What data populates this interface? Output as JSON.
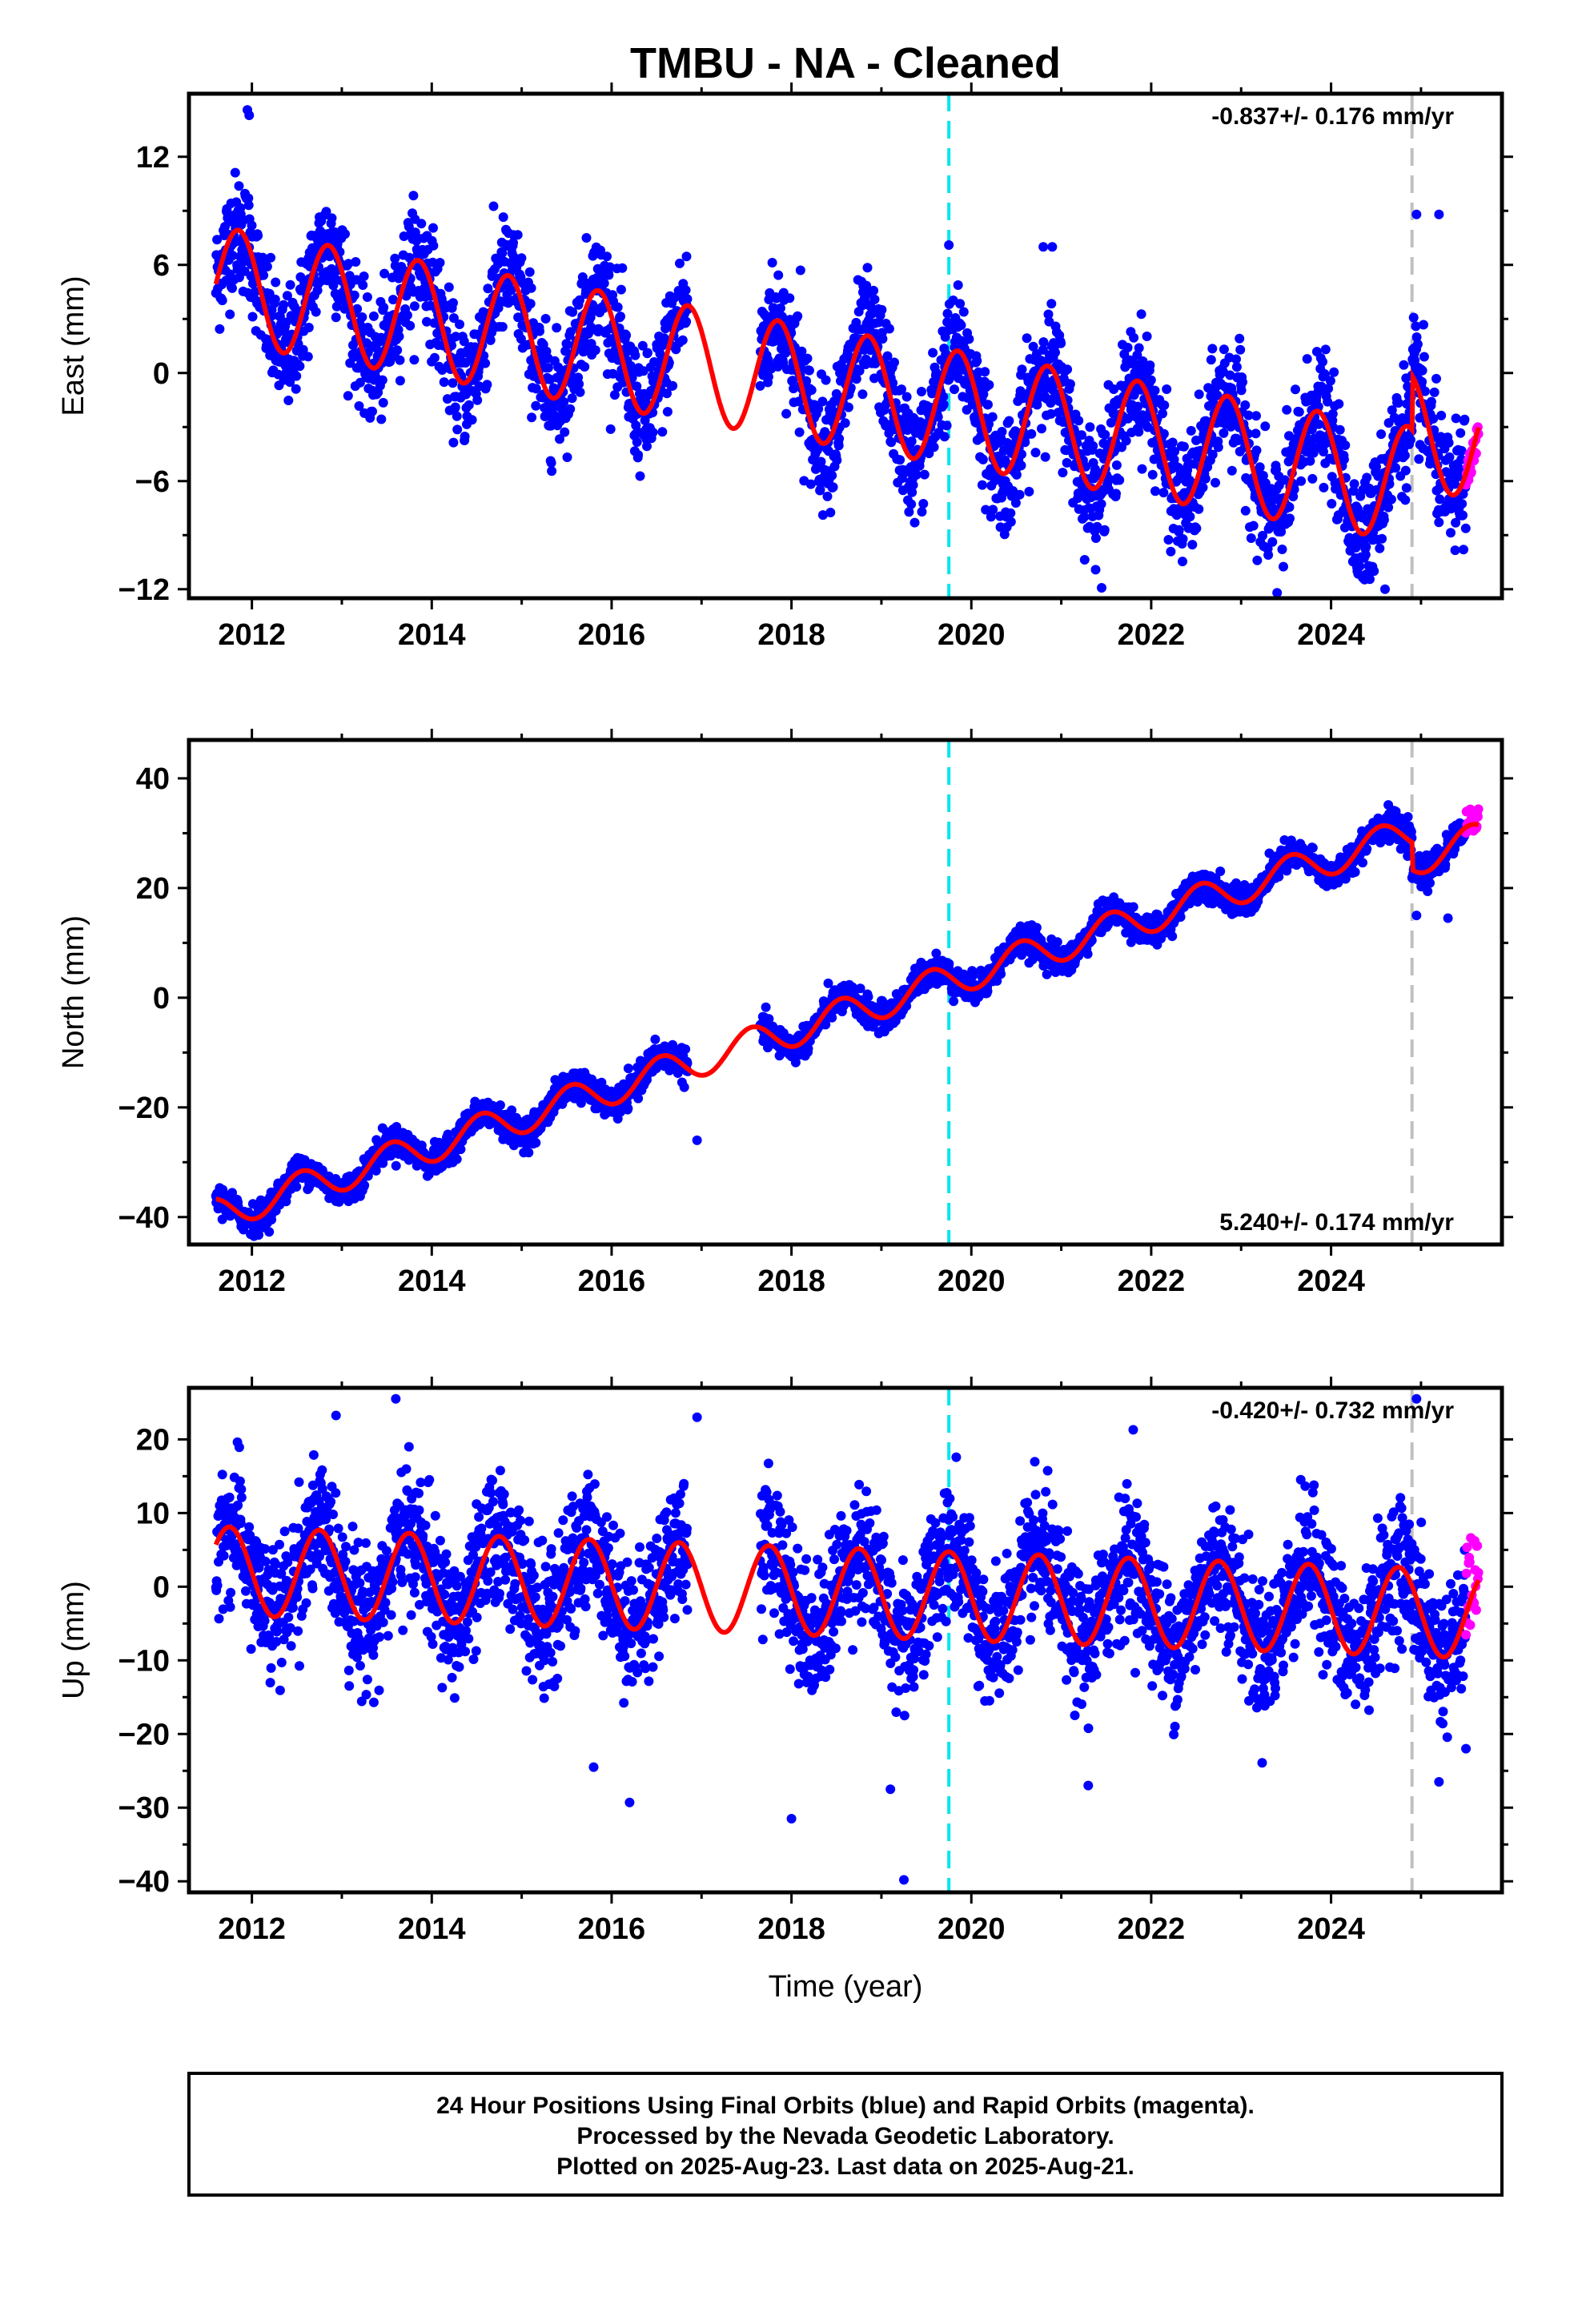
{
  "title": "TMBU  - NA - Cleaned",
  "colors": {
    "final_orbits": "#0000ff",
    "rapid_orbits": "#ff00ff",
    "model": "#ff0000",
    "marker_cyan": "#00e5ee",
    "marker_gray": "#c0c0c0"
  },
  "chart_data": [
    {
      "type": "scatter",
      "component": "east",
      "title": "",
      "xlabel": "",
      "ylabel": "East (mm)",
      "xlim": [
        2011.3,
        2025.9
      ],
      "ylim": [
        -12.5,
        15.5
      ],
      "xticks": [
        "2012",
        "2014",
        "2016",
        "2018",
        "2020",
        "2022",
        "2024"
      ],
      "yticks": [
        "12",
        "6",
        "0",
        "-6",
        "-12"
      ],
      "rate_text": "-0.837+/- 0.176 mm/yr",
      "rate_position": "top-right",
      "vertical_lines": [
        {
          "x": 2019.75,
          "color": "cyan",
          "style": "dashed"
        },
        {
          "x": 2024.9,
          "color": "gray",
          "style": "dashed"
        }
      ],
      "data_span": [
        2011.6,
        2025.64
      ],
      "data_gap": [
        2016.85,
        2017.65
      ],
      "rapid_span": [
        2025.5,
        2025.64
      ],
      "model": {
        "intercept_2012": 4.6,
        "rate": -0.837,
        "annual_amplitude": 3.2,
        "peak_phase_year": 0.85
      },
      "scatter_sigma": 1.6,
      "offsets": [
        {
          "x": 2024.9,
          "dy": 3.0
        }
      ],
      "outliers": [
        [
          2011.95,
          14.6
        ],
        [
          2011.97,
          14.3
        ],
        [
          2024.95,
          8.8
        ],
        [
          2025.2,
          8.8
        ],
        [
          2020.8,
          7.0
        ],
        [
          2020.9,
          7.0
        ],
        [
          2019.75,
          7.1
        ],
        [
          2018.1,
          5.7
        ],
        [
          2023.4,
          -12.2
        ],
        [
          2024.6,
          -12.0
        ]
      ]
    },
    {
      "type": "scatter",
      "component": "north",
      "title": "",
      "xlabel": "",
      "ylabel": "North (mm)",
      "xlim": [
        2011.3,
        2025.9
      ],
      "ylim": [
        -45,
        47
      ],
      "xticks": [
        "2012",
        "2014",
        "2016",
        "2018",
        "2020",
        "2022",
        "2024"
      ],
      "yticks": [
        "40",
        "20",
        "0",
        "-20",
        "-40"
      ],
      "rate_text": "5.240+/- 0.174 mm/yr",
      "rate_position": "bottom-right",
      "vertical_lines": [
        {
          "x": 2019.75,
          "color": "cyan",
          "style": "dashed"
        },
        {
          "x": 2024.9,
          "color": "gray",
          "style": "dashed"
        }
      ],
      "data_span": [
        2011.6,
        2025.64
      ],
      "data_gap": [
        2016.85,
        2017.65
      ],
      "rapid_span": [
        2025.5,
        2025.64
      ],
      "model": {
        "intercept_2012": -37.5,
        "rate": 5.24,
        "annual_amplitude": 3.0,
        "peak_phase_year": 0.55
      },
      "scatter_sigma": 1.3,
      "offsets": [
        {
          "x": 2024.9,
          "dy": -5.0
        }
      ],
      "outliers": [
        [
          2016.95,
          -26.0
        ],
        [
          2025.3,
          14.5
        ],
        [
          2024.95,
          15.0
        ]
      ]
    },
    {
      "type": "scatter",
      "component": "up",
      "title": "",
      "xlabel": "Time (year)",
      "ylabel": "Up (mm)",
      "xlim": [
        2011.3,
        2025.9
      ],
      "ylim": [
        -41.5,
        27
      ],
      "xticks": [
        "2012",
        "2014",
        "2016",
        "2018",
        "2020",
        "2022",
        "2024"
      ],
      "yticks": [
        "20",
        "10",
        "0",
        "-10",
        "-20",
        "-30",
        "-40"
      ],
      "rate_text": "-0.420+/- 0.732 mm/yr",
      "rate_position": "top-right",
      "vertical_lines": [
        {
          "x": 2019.75,
          "color": "cyan",
          "style": "dashed"
        },
        {
          "x": 2024.9,
          "color": "gray",
          "style": "dashed"
        }
      ],
      "data_span": [
        2011.6,
        2025.64
      ],
      "data_gap": [
        2016.85,
        2017.65
      ],
      "rapid_span": [
        2025.5,
        2025.64
      ],
      "model": {
        "intercept_2012": 2.0,
        "rate": -0.42,
        "annual_amplitude": 6.0,
        "peak_phase_year": 0.75
      },
      "scatter_sigma": 4.5,
      "offsets": [],
      "outliers": [
        [
          2019.25,
          -39.8
        ],
        [
          2018.0,
          -31.5
        ],
        [
          2015.8,
          -24.5
        ],
        [
          2016.2,
          -29.3
        ],
        [
          2021.3,
          -27.0
        ],
        [
          2019.1,
          -27.5
        ],
        [
          2013.6,
          25.5
        ],
        [
          2016.95,
          23.0
        ],
        [
          2024.95,
          25.5
        ],
        [
          2025.2,
          -26.5
        ],
        [
          2025.5,
          -22.0
        ],
        [
          2021.8,
          21.3
        ]
      ]
    }
  ],
  "footer": {
    "line1": "24 Hour Positions Using Final Orbits (blue) and Rapid Orbits (magenta).",
    "line2": "Processed by the Nevada Geodetic Laboratory.",
    "line3": "Plotted on 2025-Aug-23. Last data on 2025-Aug-21."
  }
}
